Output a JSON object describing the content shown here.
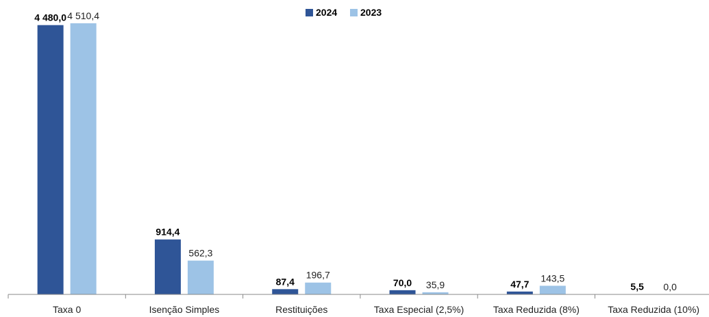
{
  "chart_data": {
    "type": "bar",
    "categories": [
      "Taxa 0",
      "Isenção Simples",
      "Restituições",
      "Taxa Especial (2,5%)",
      "Taxa Reduzida (8%)",
      "Taxa Reduzida (10%)"
    ],
    "series": [
      {
        "name": "2024",
        "color": "#2F5597",
        "values": [
          4480.0,
          914.4,
          87.4,
          70.0,
          47.7,
          5.5
        ],
        "labels": [
          "4 480,0",
          "914,4",
          "87,4",
          "70,0",
          "47,7",
          "5,5"
        ]
      },
      {
        "name": "2023",
        "color": "#9DC3E6",
        "values": [
          4510.4,
          562.3,
          196.7,
          35.9,
          143.5,
          0.0
        ],
        "labels": [
          "4 510,4",
          "562,3",
          "196,7",
          "35,9",
          "143,5",
          "0,0"
        ]
      }
    ],
    "title": "",
    "xlabel": "",
    "ylabel": "",
    "ylim": [
      0,
      4510.4
    ],
    "legend": "top-center",
    "grid": false
  }
}
